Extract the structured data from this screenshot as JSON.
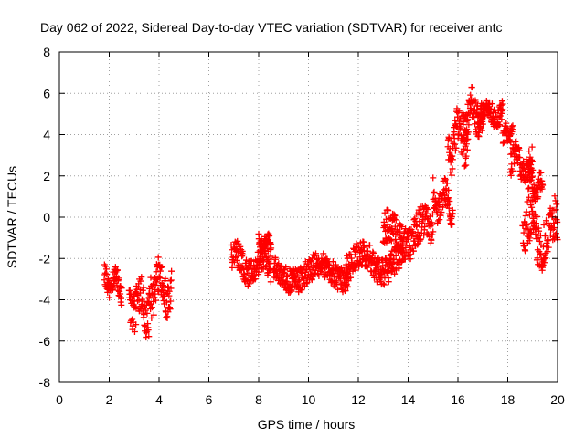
{
  "chart_data": {
    "type": "scatter",
    "title": "Day 062 of 2022, Sidereal Day-to-day VTEC variation (SDTVAR) for receiver antc",
    "xlabel": "GPS time / hours",
    "ylabel": "SDTVAR / TECUs",
    "xlim": [
      0,
      20
    ],
    "ylim": [
      -8,
      8
    ],
    "xticks": [
      0,
      2,
      4,
      6,
      8,
      10,
      12,
      14,
      16,
      18,
      20
    ],
    "yticks": [
      -8,
      -6,
      -4,
      -2,
      0,
      2,
      4,
      6,
      8
    ],
    "grid": true,
    "marker": "+",
    "color": "#ff0000",
    "series": [
      {
        "name": "SDTVAR",
        "segments": [
          {
            "x0": 1.8,
            "x1": 2.5,
            "center": -3.2,
            "spread": 1.1
          },
          {
            "x0": 2.8,
            "x1": 3.6,
            "center": -4.2,
            "spread": 1.9
          },
          {
            "x0": 3.6,
            "x1": 4.5,
            "center": -3.4,
            "spread": 2.0
          },
          {
            "x0": 6.9,
            "x1": 8.5,
            "center": -2.3,
            "spread": 1.3
          },
          {
            "x0": 8.0,
            "x1": 8.5,
            "center": -1.2,
            "spread": 0.6
          },
          {
            "x0": 8.6,
            "x1": 11.6,
            "center": -2.7,
            "spread": 1.2
          },
          {
            "x0": 11.5,
            "x1": 13.8,
            "center": -2.2,
            "spread": 1.3
          },
          {
            "x0": 13.0,
            "x1": 15.0,
            "center": -0.8,
            "spread": 1.6
          },
          {
            "x0": 15.0,
            "x1": 15.8,
            "center": 0.8,
            "spread": 1.4
          },
          {
            "x0": 15.6,
            "x1": 16.4,
            "center": 3.8,
            "spread": 2.0
          },
          {
            "x0": 16.2,
            "x1": 17.0,
            "center": 5.0,
            "spread": 1.6
          },
          {
            "x0": 16.8,
            "x1": 17.8,
            "center": 5.0,
            "spread": 1.0
          },
          {
            "x0": 17.8,
            "x1": 18.2,
            "center": 4.0,
            "spread": 0.8
          },
          {
            "x0": 18.1,
            "x1": 19.0,
            "center": 2.6,
            "spread": 1.2
          },
          {
            "x0": 18.8,
            "x1": 19.4,
            "center": 1.5,
            "spread": 1.0
          },
          {
            "x0": 18.6,
            "x1": 20.0,
            "center": -0.8,
            "spread": 2.2
          }
        ]
      }
    ]
  }
}
